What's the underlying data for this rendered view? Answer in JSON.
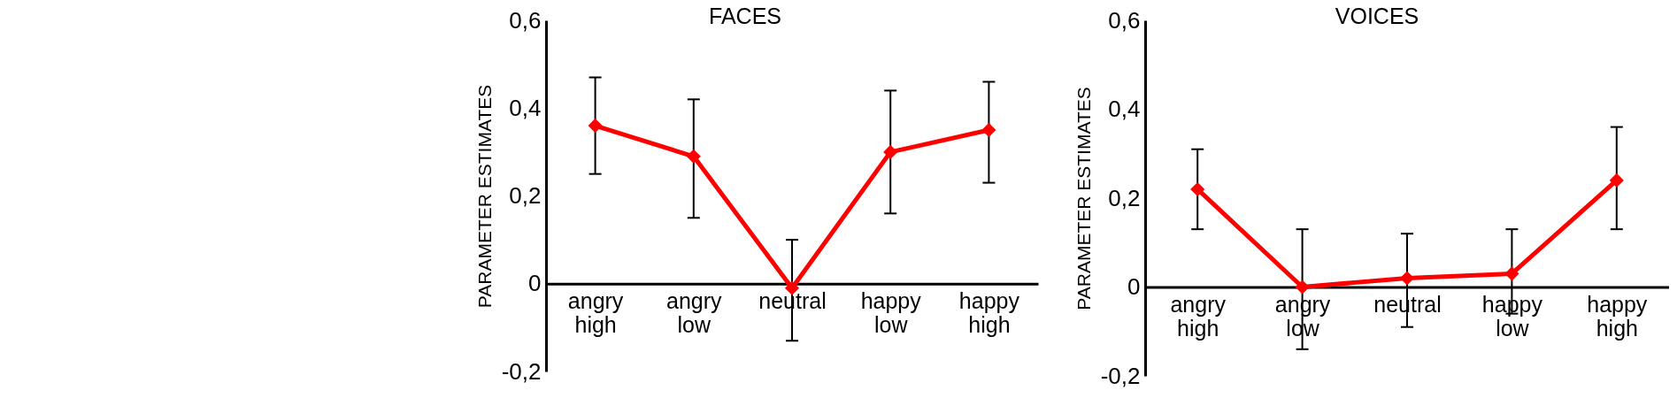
{
  "chart_data": [
    {
      "type": "line",
      "title": "FACES",
      "ylabel": "PARAMETER ESTIMATES",
      "categories": [
        "angry\nhigh",
        "angry\nlow",
        "neutral",
        "happy\nlow",
        "happy\nhigh"
      ],
      "values": [
        0.36,
        0.29,
        -0.01,
        0.3,
        0.35
      ],
      "errors": [
        [
          0.25,
          0.47
        ],
        [
          0.15,
          0.42
        ],
        [
          -0.13,
          0.1
        ],
        [
          0.16,
          0.44
        ],
        [
          0.23,
          0.46
        ]
      ],
      "color": "#ff0000",
      "marker": "diamond",
      "line_style": "solid",
      "ylim": [
        -0.2,
        0.6
      ],
      "yticks": [
        {
          "value": 0.6,
          "label": "0,6"
        },
        {
          "value": 0.4,
          "label": "0,4"
        },
        {
          "value": 0.2,
          "label": "0,2"
        },
        0,
        {
          "value": -0.2,
          "label": "-0,2"
        }
      ]
    },
    {
      "type": "line",
      "title": "VOICES",
      "ylabel": "PARAMETER ESTIMATES",
      "categories": [
        "angry\nhigh",
        "angry\nlow",
        "neutral",
        "happy\nlow",
        "happy\nhigh"
      ],
      "values": [
        0.22,
        0.0,
        0.02,
        0.03,
        0.24
      ],
      "errors": [
        [
          0.13,
          0.31
        ],
        [
          -0.14,
          0.13
        ],
        [
          -0.09,
          0.12
        ],
        [
          -0.06,
          0.13
        ],
        [
          0.13,
          0.36
        ]
      ],
      "color": "#ff0000",
      "marker": "diamond",
      "line_style": "solid",
      "ylim": [
        -0.2,
        0.6
      ],
      "yticks": [
        {
          "value": 0.6,
          "label": "0,6"
        },
        {
          "value": 0.4,
          "label": "0,4"
        },
        {
          "value": 0.2,
          "label": "0,2"
        },
        0,
        {
          "value": -0.2,
          "label": "-0,2"
        }
      ]
    }
  ]
}
